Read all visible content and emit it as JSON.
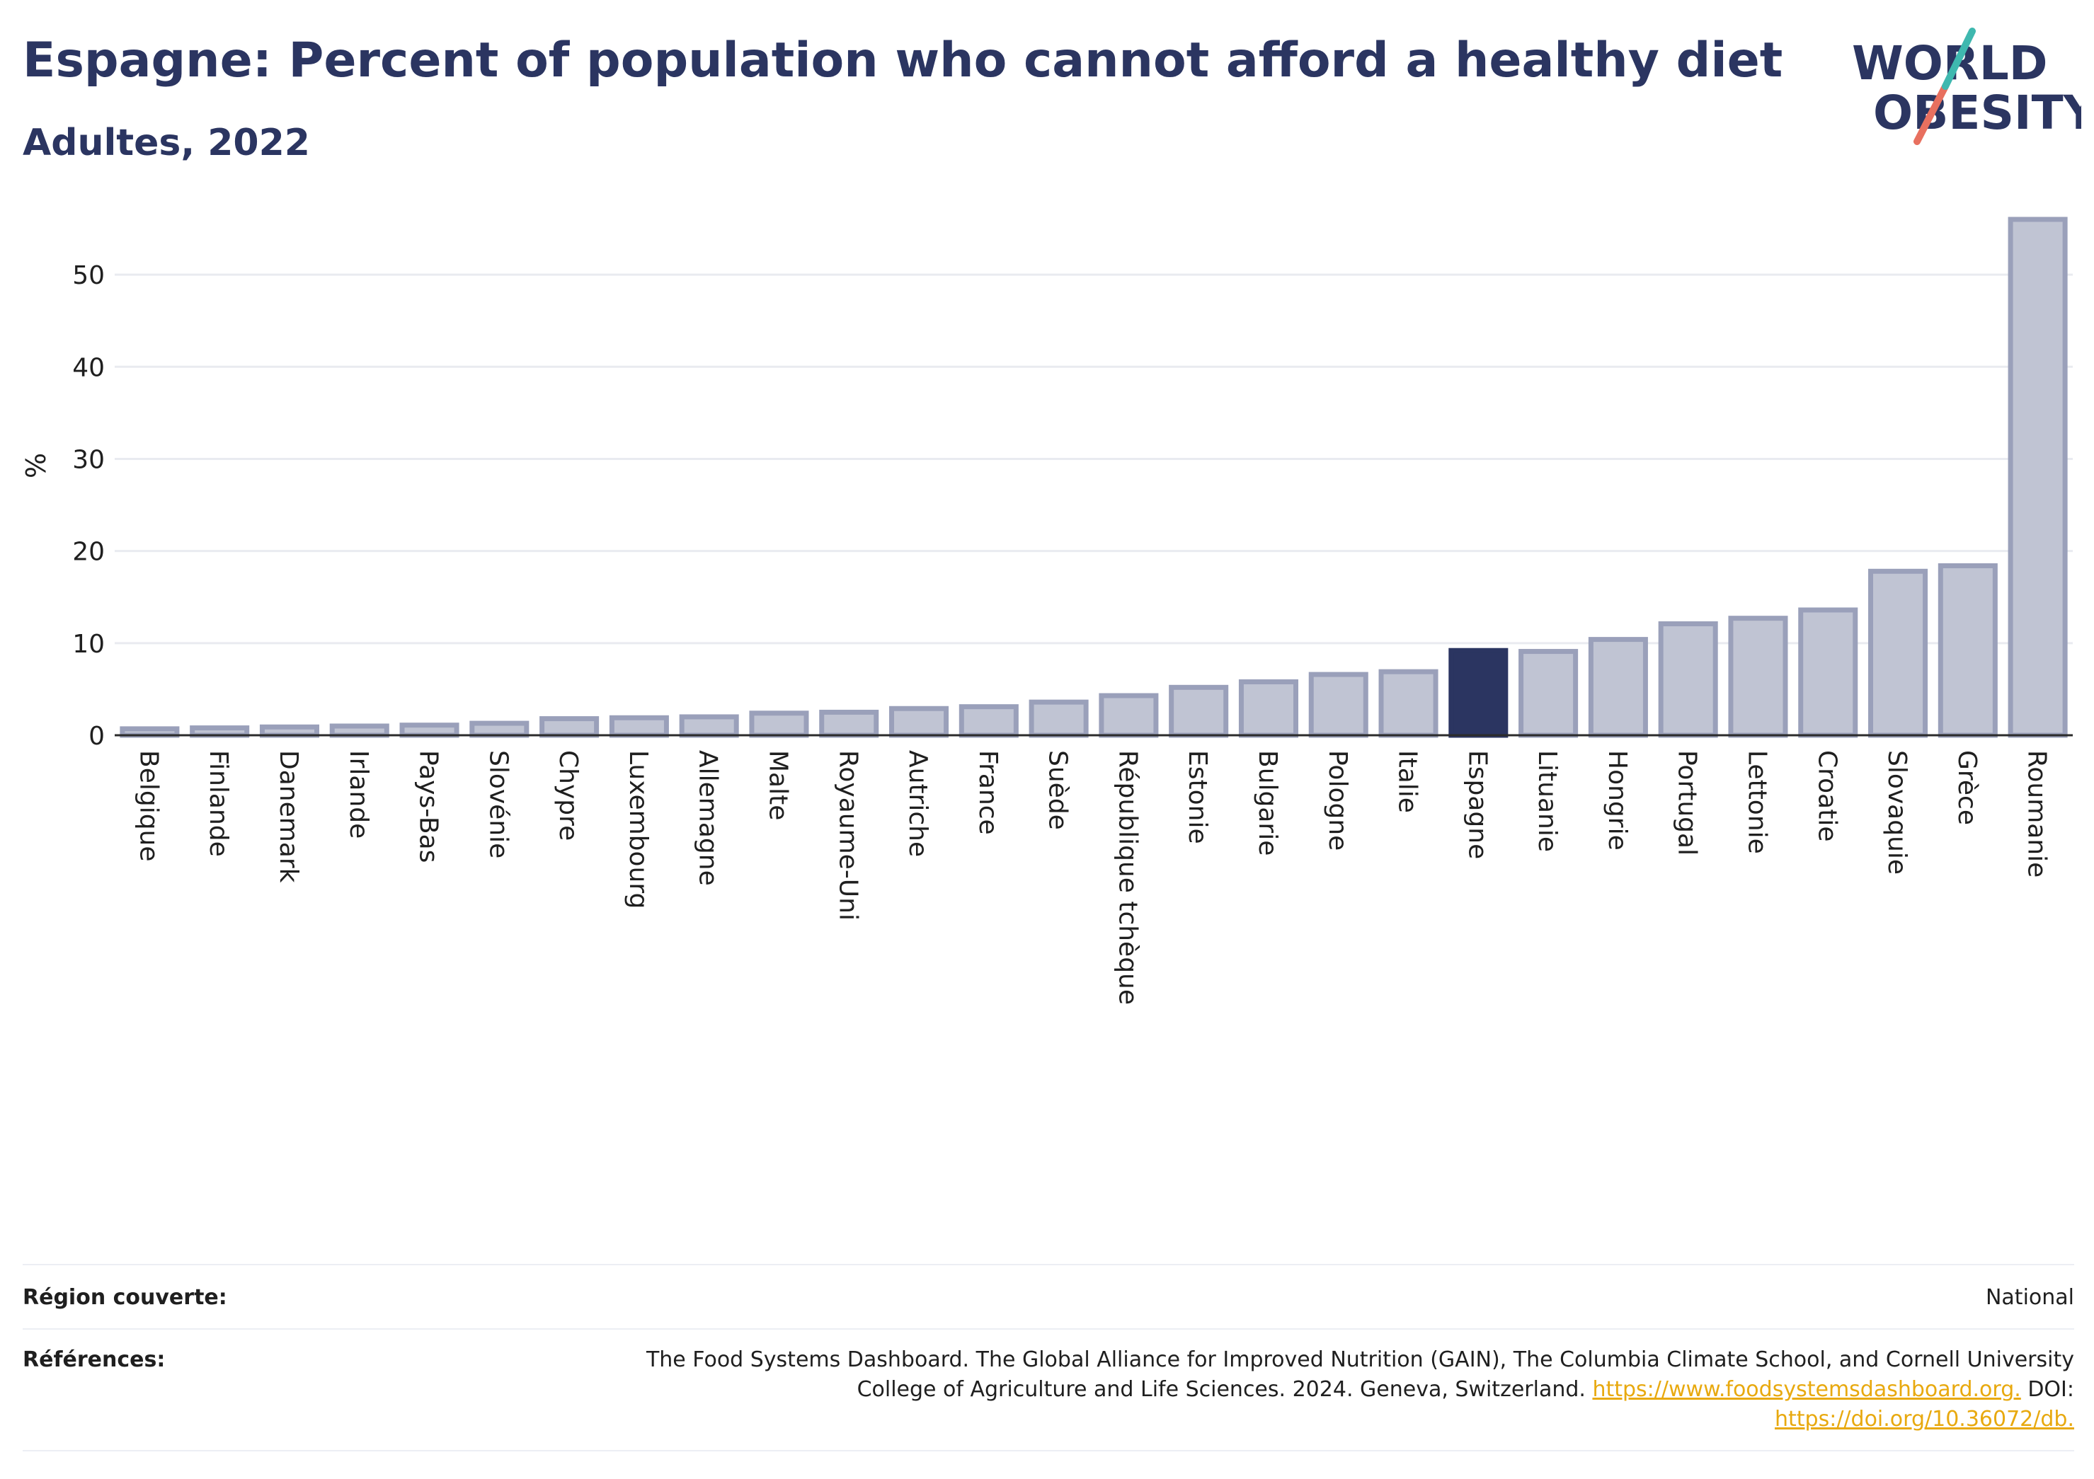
{
  "header": {
    "title": "Espagne: Percent of population who cannot afford a healthy diet",
    "subtitle": "Adultes, 2022"
  },
  "logo": {
    "line1": "WORLD",
    "line2": "OBESITY"
  },
  "colors": {
    "bar_fill": "#c0c4d3",
    "bar_stroke": "#9aa0ba",
    "highlight": "#2b3561",
    "text": "#2b3561",
    "grid": "#e9ebf0",
    "logo_teal": "#3fb8af",
    "logo_red": "#e8705f",
    "link": "#e8a90f"
  },
  "chart_data": {
    "type": "bar",
    "ylabel": "%",
    "ylim": [
      0,
      56
    ],
    "yticks": [
      0,
      10,
      20,
      30,
      40,
      50
    ],
    "grid": true,
    "highlight": "Espagne",
    "categories": [
      "Belgique",
      "Finlande",
      "Danemark",
      "Irlande",
      "Pays-Bas",
      "Slovénie",
      "Chypre",
      "Luxembourg",
      "Allemagne",
      "Malte",
      "Royaume-Uni",
      "Autriche",
      "France",
      "Suède",
      "République tchèque",
      "Estonie",
      "Bulgarie",
      "Pologne",
      "Italie",
      "Espagne",
      "Lituanie",
      "Hongrie",
      "Portugal",
      "Lettonie",
      "Croatie",
      "Slovaquie",
      "Grèce",
      "Roumanie"
    ],
    "values": [
      0.7,
      0.8,
      0.9,
      1.0,
      1.1,
      1.3,
      1.8,
      1.9,
      2.0,
      2.4,
      2.5,
      2.9,
      3.1,
      3.6,
      4.3,
      5.2,
      5.8,
      6.6,
      6.9,
      9.2,
      9.1,
      10.4,
      12.1,
      12.7,
      13.6,
      17.8,
      18.4,
      56.0
    ]
  },
  "footer": {
    "region_label": "Région couverte:",
    "region_value": "National",
    "refs_label": "Références:",
    "refs_line1": "The Food Systems Dashboard. The Global Alliance for Improved Nutrition (GAIN), The Columbia Climate School, and Cornell University",
    "refs_line2": "College of Agriculture and Life Sciences. 2024. Geneva, Switzerland. ",
    "refs_link1": "https://www.foodsystemsdashboard.org.",
    "refs_doi": " DOI:",
    "refs_link2": "https://doi.org/10.36072/db."
  }
}
